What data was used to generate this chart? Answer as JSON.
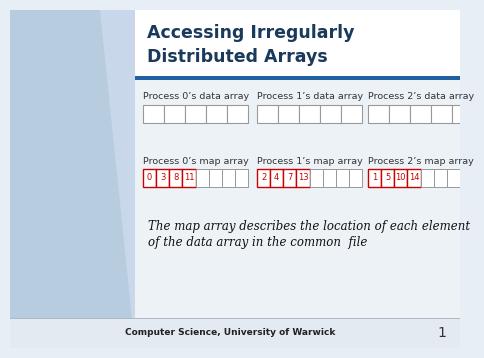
{
  "title_line1": "Accessing Irregularly",
  "title_line2": "Distributed Arrays",
  "title_color": "#1a3a5c",
  "bg_color": "#e8eef5",
  "left_panel_color": "#c8d8e8",
  "left_panel_lighter": "#d8e5f0",
  "header_bar_color": "#2060a0",
  "content_bg": "#edf2f7",
  "footer_text": "Computer Science, University of Warwick",
  "slide_number": "1",
  "data_array_labels": [
    "Process 0’s data array",
    "Process 1’s data array",
    "Process 2’s data array"
  ],
  "map_array_labels": [
    "Process 0’s map array",
    "Process 1’s map array",
    "Process 2’s map array"
  ],
  "map_values": [
    [
      "0",
      "3",
      "8",
      "11"
    ],
    [
      "2",
      "4",
      "7",
      "13"
    ],
    [
      "1",
      "5",
      "10",
      "14"
    ]
  ],
  "array_box_color": "#ffffff",
  "array_border_color": "#999999",
  "map_value_color": "#cc0000",
  "map_border_color": "#cc0000",
  "note_text_line1": "The map array describes the location of each element",
  "note_text_line2": "of the data array in the common  file"
}
